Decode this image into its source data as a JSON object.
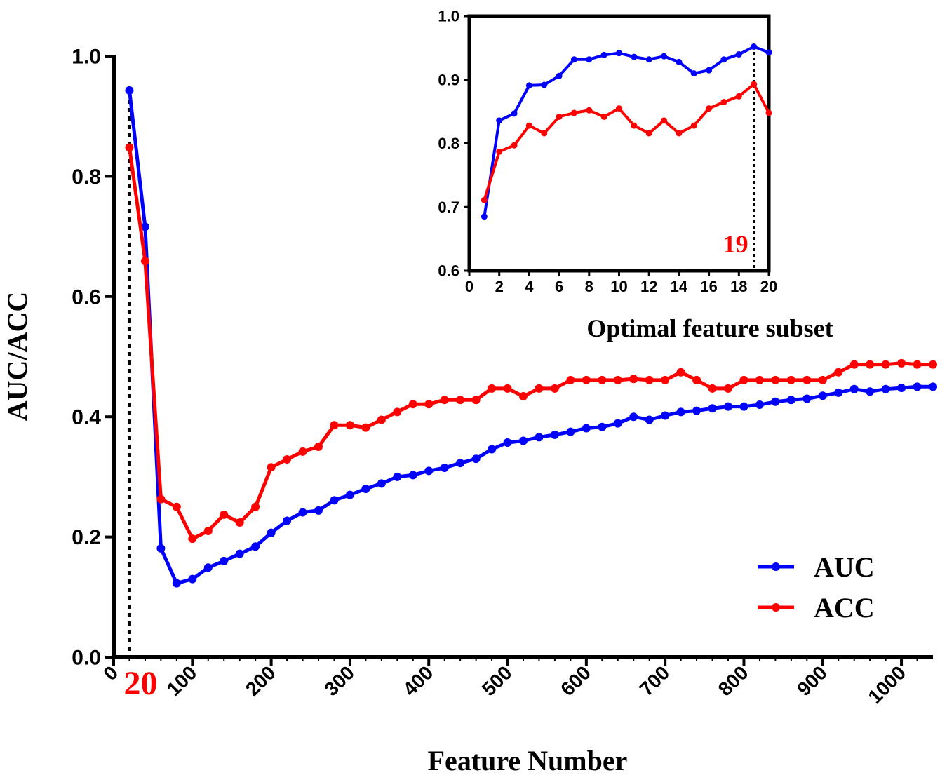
{
  "chart_data": [
    {
      "id": "main",
      "type": "line",
      "title": "",
      "xlabel": "Feature Number",
      "ylabel": "AUC/ACC",
      "xlim": [
        0,
        1040
      ],
      "ylim": [
        0,
        1.0
      ],
      "xticks": [
        0,
        100,
        200,
        300,
        400,
        500,
        600,
        700,
        800,
        900,
        1000
      ],
      "yticks": [
        "0.0",
        "0.2",
        "0.4",
        "0.6",
        "0.8",
        "1.0"
      ],
      "grid": false,
      "legend": "bottom-right",
      "x": [
        20,
        40,
        60,
        80,
        100,
        120,
        140,
        160,
        180,
        200,
        220,
        240,
        260,
        280,
        300,
        320,
        340,
        360,
        380,
        400,
        420,
        440,
        460,
        480,
        500,
        520,
        540,
        560,
        580,
        600,
        620,
        640,
        660,
        680,
        700,
        720,
        740,
        760,
        780,
        800,
        820,
        840,
        860,
        880,
        900,
        920,
        940,
        960,
        980,
        1000,
        1020,
        1040
      ],
      "series": [
        {
          "name": "AUC",
          "color": "#0000ff",
          "values": [
            0.943,
            0.716,
            0.181,
            0.123,
            0.13,
            0.149,
            0.16,
            0.172,
            0.184,
            0.207,
            0.227,
            0.241,
            0.244,
            0.261,
            0.27,
            0.28,
            0.289,
            0.3,
            0.303,
            0.31,
            0.315,
            0.323,
            0.33,
            0.346,
            0.357,
            0.36,
            0.366,
            0.37,
            0.375,
            0.381,
            0.383,
            0.389,
            0.4,
            0.395,
            0.402,
            0.408,
            0.41,
            0.414,
            0.417,
            0.417,
            0.42,
            0.425,
            0.428,
            0.43,
            0.435,
            0.44,
            0.446,
            0.442,
            0.446,
            0.448,
            0.45,
            0.45
          ]
        },
        {
          "name": "ACC",
          "color": "#ff0000",
          "values": [
            0.848,
            0.659,
            0.263,
            0.25,
            0.197,
            0.21,
            0.237,
            0.224,
            0.25,
            0.316,
            0.329,
            0.342,
            0.35,
            0.386,
            0.386,
            0.382,
            0.395,
            0.408,
            0.421,
            0.421,
            0.428,
            0.428,
            0.428,
            0.447,
            0.447,
            0.434,
            0.447,
            0.447,
            0.461,
            0.461,
            0.461,
            0.461,
            0.463,
            0.461,
            0.461,
            0.474,
            0.461,
            0.447,
            0.447,
            0.461,
            0.461,
            0.461,
            0.461,
            0.461,
            0.461,
            0.474,
            0.487,
            0.487,
            0.487,
            0.489,
            0.487,
            0.487
          ]
        }
      ],
      "annotation": {
        "x": 20,
        "label": "20",
        "color": "#ff0000"
      }
    },
    {
      "id": "inset",
      "type": "line",
      "title": "",
      "xlabel": "Optimal feature subset",
      "ylabel": "",
      "xlim": [
        0,
        20
      ],
      "ylim": [
        0.6,
        1.0
      ],
      "xticks": [
        "0",
        "2",
        "4",
        "6",
        "8",
        "10",
        "12",
        "14",
        "16",
        "18",
        "20"
      ],
      "yticks": [
        "0.6",
        "0.7",
        "0.8",
        "0.9",
        "1.0"
      ],
      "grid": false,
      "x": [
        1,
        2,
        3,
        4,
        5,
        6,
        7,
        8,
        9,
        10,
        11,
        12,
        13,
        14,
        15,
        16,
        17,
        18,
        19,
        20
      ],
      "series": [
        {
          "name": "AUC",
          "color": "#0000ff",
          "values": [
            0.685,
            0.836,
            0.847,
            0.891,
            0.892,
            0.906,
            0.932,
            0.932,
            0.939,
            0.942,
            0.936,
            0.932,
            0.937,
            0.928,
            0.91,
            0.915,
            0.932,
            0.94,
            0.952,
            0.943
          ]
        },
        {
          "name": "ACC",
          "color": "#ff0000",
          "values": [
            0.711,
            0.787,
            0.797,
            0.828,
            0.816,
            0.842,
            0.848,
            0.852,
            0.842,
            0.855,
            0.828,
            0.816,
            0.836,
            0.816,
            0.828,
            0.855,
            0.865,
            0.874,
            0.893,
            0.848
          ]
        }
      ],
      "annotation": {
        "x": 19,
        "label": "19",
        "color": "#ff0000"
      }
    }
  ]
}
